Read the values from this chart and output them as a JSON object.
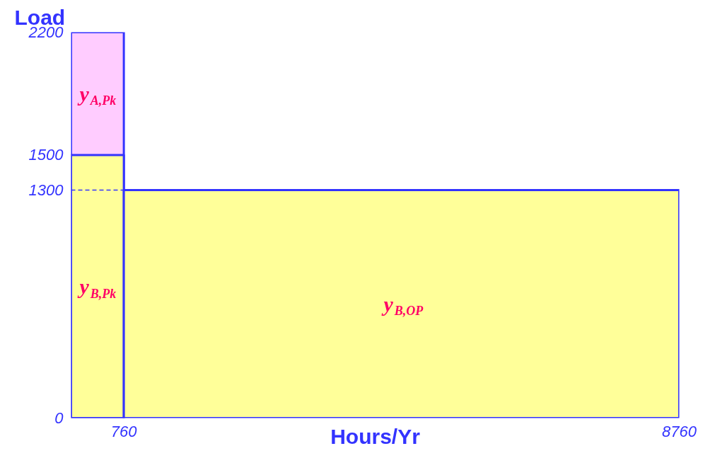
{
  "chart_data": {
    "type": "area",
    "ylabel": "Load",
    "xlabel": "Hours/Yr",
    "series": [
      {
        "color": "#ffccff",
        "x": [
          0,
          760
        ],
        "values": [
          2200,
          2200
        ]
      },
      {
        "color": "#ffff99",
        "x": [
          0,
          760
        ],
        "values": [
          1500,
          1500
        ]
      },
      {
        "color": "#ffff99",
        "x": [
          760,
          8760
        ],
        "values": [
          1300,
          1300
        ]
      }
    ],
    "xlim": [
      0,
      8760
    ],
    "xticks": [
      760,
      8760
    ],
    "ylim": [
      0,
      2200
    ],
    "yticks": [
      0,
      1300,
      1500,
      2200
    ],
    "ref_lines": [
      {
        "axis": "y",
        "value": 1300,
        "label": null,
        "color": "#3333ff",
        "line_style": "dashed"
      }
    ],
    "annotations": [
      "y$_{A,Pk}$",
      "y$_{B,Pk}$",
      "y$_{B,OP}$"
    ],
    "grid": false
  }
}
